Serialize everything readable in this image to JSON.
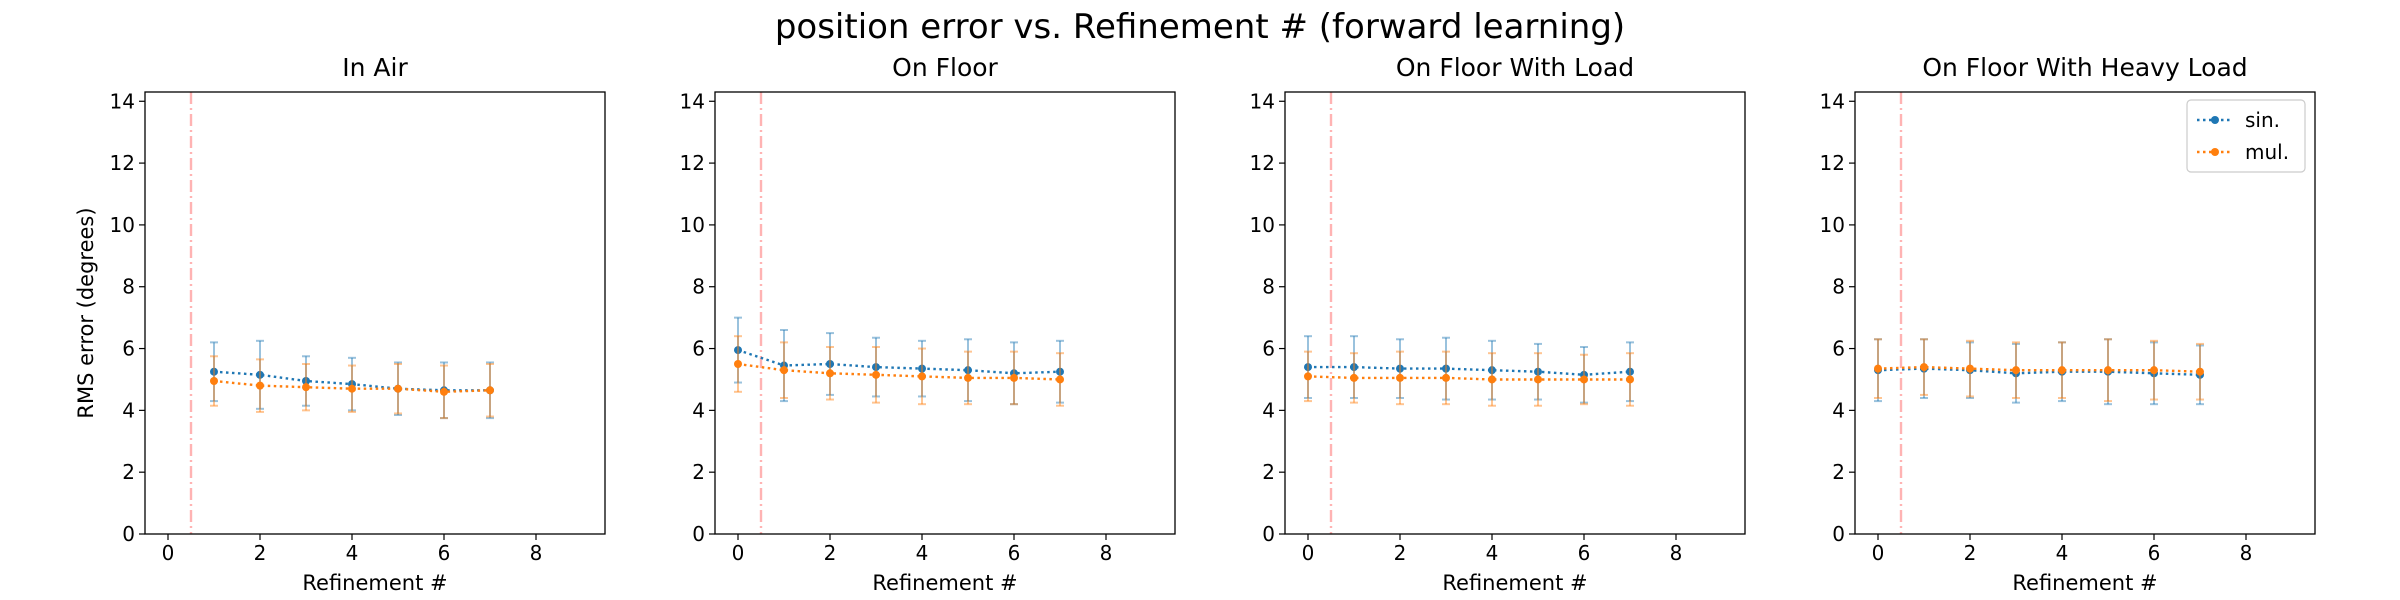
{
  "figure": {
    "suptitle": "position error vs. Refinement # (forward learning)"
  },
  "chart_data": [
    {
      "type": "line",
      "title": "In Air",
      "xlabel": "Refinement #",
      "ylabel": "RMS error (degrees)",
      "xlim": [
        -0.5,
        9.5
      ],
      "ylim": [
        0,
        14.3
      ],
      "xticks": [
        0,
        2,
        4,
        6,
        8
      ],
      "yticks": [
        0,
        2,
        4,
        6,
        8,
        10,
        12,
        14
      ],
      "vline_x": 0.5,
      "legend": "none",
      "series": [
        {
          "name": "sin.",
          "color": "#1f77b4",
          "x": [
            1,
            2,
            3,
            4,
            5,
            6,
            7
          ],
          "y": [
            5.25,
            5.15,
            4.95,
            4.85,
            4.7,
            4.65,
            4.65
          ],
          "err": [
            0.95,
            1.1,
            0.8,
            0.85,
            0.85,
            0.9,
            0.9
          ]
        },
        {
          "name": "mul.",
          "color": "#ff7f0e",
          "x": [
            1,
            2,
            3,
            4,
            5,
            6,
            7
          ],
          "y": [
            4.95,
            4.8,
            4.75,
            4.7,
            4.7,
            4.6,
            4.65
          ],
          "err": [
            0.8,
            0.85,
            0.75,
            0.75,
            0.8,
            0.85,
            0.85
          ]
        }
      ]
    },
    {
      "type": "line",
      "title": "On Floor",
      "xlabel": "Refinement #",
      "ylabel": "",
      "xlim": [
        -0.5,
        9.5
      ],
      "ylim": [
        0,
        14.3
      ],
      "xticks": [
        0,
        2,
        4,
        6,
        8
      ],
      "yticks": [
        0,
        2,
        4,
        6,
        8,
        10,
        12,
        14
      ],
      "vline_x": 0.5,
      "legend": "none",
      "series": [
        {
          "name": "sin.",
          "color": "#1f77b4",
          "x": [
            0,
            1,
            2,
            3,
            4,
            5,
            6,
            7
          ],
          "y": [
            5.95,
            5.45,
            5.5,
            5.4,
            5.35,
            5.3,
            5.2,
            5.25
          ],
          "err": [
            1.05,
            1.15,
            1.0,
            0.95,
            0.9,
            1.0,
            1.0,
            1.0
          ]
        },
        {
          "name": "mul.",
          "color": "#ff7f0e",
          "x": [
            0,
            1,
            2,
            3,
            4,
            5,
            6,
            7
          ],
          "y": [
            5.5,
            5.3,
            5.2,
            5.15,
            5.1,
            5.05,
            5.05,
            5.0
          ],
          "err": [
            0.9,
            0.9,
            0.85,
            0.9,
            0.9,
            0.85,
            0.85,
            0.85
          ]
        }
      ]
    },
    {
      "type": "line",
      "title": "On Floor With Load",
      "xlabel": "Refinement #",
      "ylabel": "",
      "xlim": [
        -0.5,
        9.5
      ],
      "ylim": [
        0,
        14.3
      ],
      "xticks": [
        0,
        2,
        4,
        6,
        8
      ],
      "yticks": [
        0,
        2,
        4,
        6,
        8,
        10,
        12,
        14
      ],
      "vline_x": 0.5,
      "legend": "none",
      "series": [
        {
          "name": "sin.",
          "color": "#1f77b4",
          "x": [
            0,
            1,
            2,
            3,
            4,
            5,
            6,
            7
          ],
          "y": [
            5.4,
            5.4,
            5.35,
            5.35,
            5.3,
            5.25,
            5.15,
            5.25
          ],
          "err": [
            1.0,
            1.0,
            0.95,
            1.0,
            0.95,
            0.9,
            0.9,
            0.95
          ]
        },
        {
          "name": "mul.",
          "color": "#ff7f0e",
          "x": [
            0,
            1,
            2,
            3,
            4,
            5,
            6,
            7
          ],
          "y": [
            5.1,
            5.05,
            5.05,
            5.05,
            5.0,
            5.0,
            5.0,
            5.0
          ],
          "err": [
            0.8,
            0.8,
            0.85,
            0.85,
            0.85,
            0.85,
            0.8,
            0.85
          ]
        }
      ]
    },
    {
      "type": "line",
      "title": "On Floor With Heavy Load",
      "xlabel": "Refinement #",
      "ylabel": "",
      "xlim": [
        -0.5,
        9.5
      ],
      "ylim": [
        0,
        14.3
      ],
      "xticks": [
        0,
        2,
        4,
        6,
        8
      ],
      "yticks": [
        0,
        2,
        4,
        6,
        8,
        10,
        12,
        14
      ],
      "vline_x": 0.5,
      "legend": "top-right",
      "series": [
        {
          "name": "sin.",
          "color": "#1f77b4",
          "x": [
            0,
            1,
            2,
            3,
            4,
            5,
            6,
            7
          ],
          "y": [
            5.3,
            5.35,
            5.3,
            5.2,
            5.25,
            5.25,
            5.2,
            5.15
          ],
          "err": [
            1.0,
            0.95,
            0.9,
            0.95,
            0.95,
            1.05,
            1.0,
            0.95
          ]
        },
        {
          "name": "mul.",
          "color": "#ff7f0e",
          "x": [
            0,
            1,
            2,
            3,
            4,
            5,
            6,
            7
          ],
          "y": [
            5.35,
            5.4,
            5.35,
            5.3,
            5.3,
            5.3,
            5.3,
            5.25
          ],
          "err": [
            0.95,
            0.9,
            0.9,
            0.9,
            0.9,
            1.0,
            0.95,
            0.9
          ]
        }
      ]
    }
  ]
}
